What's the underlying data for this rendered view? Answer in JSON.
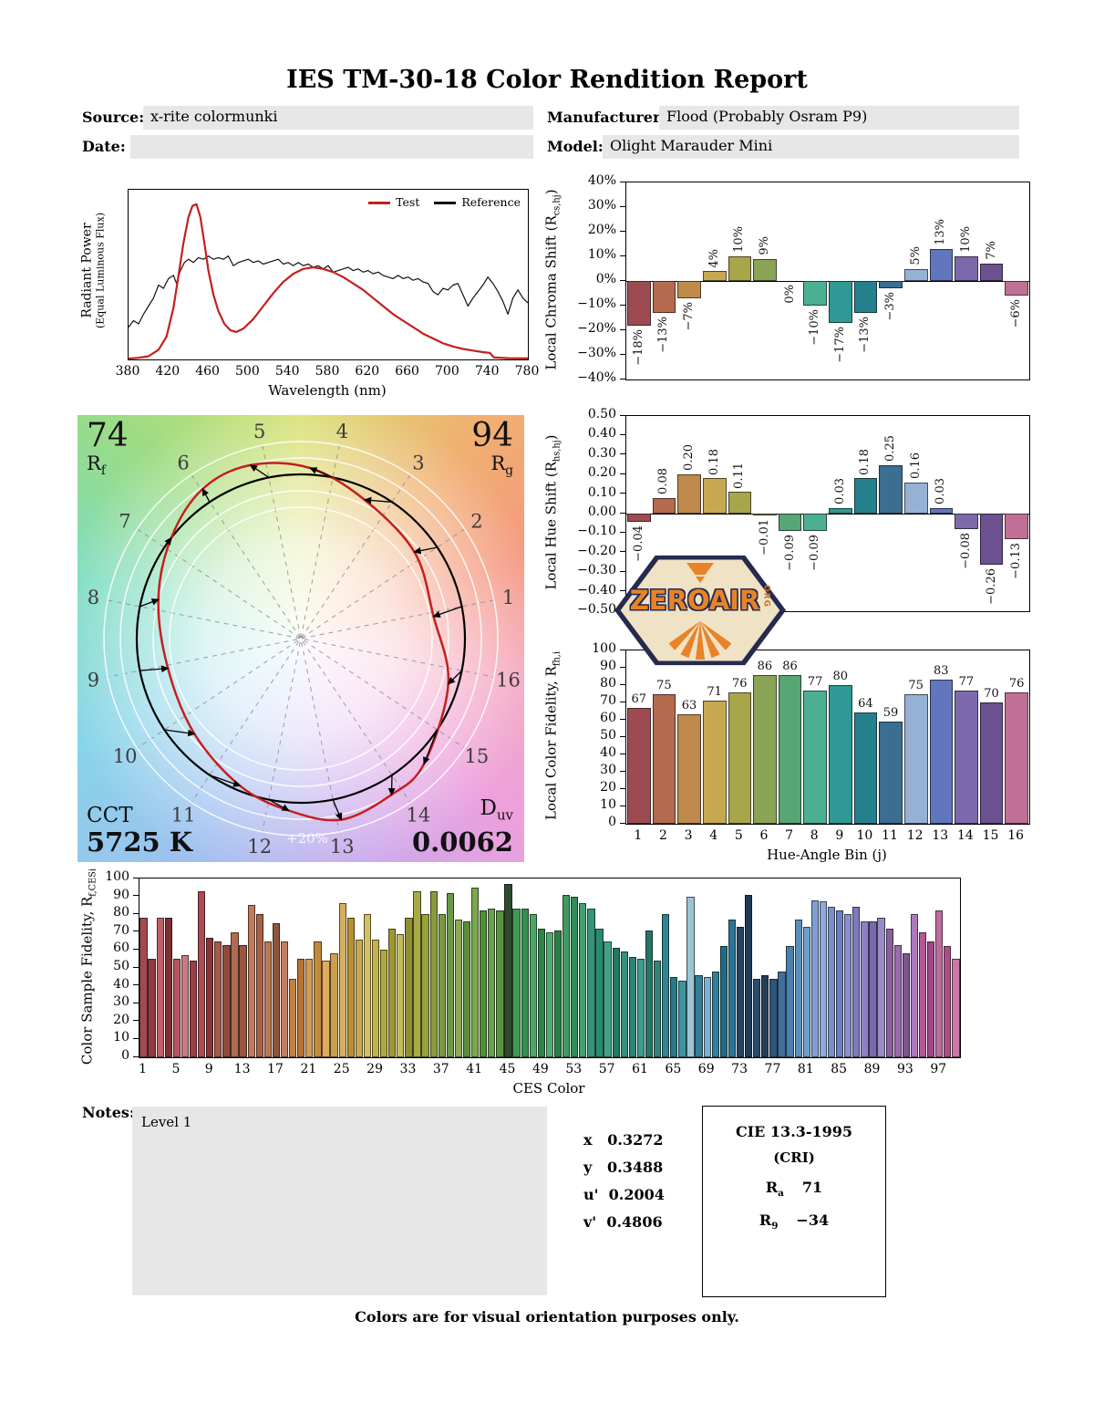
{
  "title": "IES TM-30-18 Color Rendition Report",
  "header": {
    "source_label": "Source:",
    "source_value": "x-rite colormunki",
    "manufacturer_label": "Manufacturer:",
    "manufacturer_value": "Flood (Probably Osram P9)",
    "date_label": "Date:",
    "date_value": "",
    "model_label": "Model:",
    "model_value": "Olight Marauder Mini"
  },
  "watermark": {
    "name": "ZEROAIR",
    "org": "ORG"
  },
  "notes": {
    "label": "Notes:",
    "value": "Level 1"
  },
  "chromaticity": {
    "rows": [
      {
        "label": "x",
        "value": "0.3272"
      },
      {
        "label": "y",
        "value": "0.3488"
      },
      {
        "label": "u'",
        "value": "0.2004"
      },
      {
        "label": "v'",
        "value": "0.4806"
      }
    ]
  },
  "cie_box": {
    "title": "CIE 13.3-1995",
    "subtitle": "(CRI)",
    "ra_sym": "R",
    "ra_sub": "a",
    "ra_value": "71",
    "r9_sym": "R",
    "r9_sub": "9",
    "r9_value": "−34"
  },
  "footer": "Colors are for visual orientation purposes only.",
  "cvg": {
    "rf_value": "74",
    "rf_sym": "R",
    "rf_sub": "f",
    "rg_value": "94",
    "rg_sym": "R",
    "rg_sub": "g",
    "cct_label": "CCT",
    "cct_value": "5725 K",
    "duv_sym": "D",
    "duv_sub": "uv",
    "duv_value": "0.0062",
    "ring_label": "+20%"
  },
  "bin_colors": [
    "#9d4b52",
    "#b56a4e",
    "#bf8a4b",
    "#c6a851",
    "#a8a64b",
    "#8aa455",
    "#57a572",
    "#4daf92",
    "#2e9995",
    "#25808d",
    "#3b6e90",
    "#97b1d5",
    "#6077be",
    "#7c69ac",
    "#6b5190",
    "#c06f97"
  ],
  "chart_data": [
    {
      "id": "spd",
      "type": "line",
      "ylabel": "Radiant Power",
      "ylabel_sub": "(Equal Luminous Flux)",
      "xlabel": "Wavelength (nm)",
      "xlim": [
        380,
        780
      ],
      "ymax": 1.05,
      "x_ticks": [
        380,
        420,
        460,
        500,
        540,
        580,
        620,
        660,
        700,
        740,
        780
      ],
      "series": [
        {
          "name": "Test",
          "color": "#c41f1f",
          "points": [
            [
              380,
              0.005
            ],
            [
              390,
              0.01
            ],
            [
              400,
              0.02
            ],
            [
              410,
              0.06
            ],
            [
              418,
              0.14
            ],
            [
              425,
              0.32
            ],
            [
              430,
              0.52
            ],
            [
              435,
              0.72
            ],
            [
              440,
              0.88
            ],
            [
              444,
              0.95
            ],
            [
              448,
              0.96
            ],
            [
              452,
              0.88
            ],
            [
              456,
              0.72
            ],
            [
              460,
              0.55
            ],
            [
              465,
              0.4
            ],
            [
              470,
              0.3
            ],
            [
              476,
              0.22
            ],
            [
              482,
              0.18
            ],
            [
              488,
              0.17
            ],
            [
              495,
              0.19
            ],
            [
              505,
              0.25
            ],
            [
              515,
              0.33
            ],
            [
              525,
              0.41
            ],
            [
              535,
              0.48
            ],
            [
              545,
              0.53
            ],
            [
              555,
              0.56
            ],
            [
              565,
              0.57
            ],
            [
              575,
              0.56
            ],
            [
              585,
              0.54
            ],
            [
              595,
              0.51
            ],
            [
              605,
              0.47
            ],
            [
              615,
              0.43
            ],
            [
              625,
              0.38
            ],
            [
              635,
              0.33
            ],
            [
              645,
              0.28
            ],
            [
              655,
              0.24
            ],
            [
              665,
              0.2
            ],
            [
              675,
              0.16
            ],
            [
              685,
              0.13
            ],
            [
              695,
              0.1
            ],
            [
              705,
              0.08
            ],
            [
              715,
              0.065
            ],
            [
              725,
              0.055
            ],
            [
              735,
              0.045
            ],
            [
              742,
              0.04
            ],
            [
              746,
              0.012
            ],
            [
              760,
              0.008
            ],
            [
              780,
              0.006
            ]
          ]
        },
        {
          "name": "Reference",
          "color": "#111111",
          "points": [
            [
              380,
              0.2
            ],
            [
              385,
              0.24
            ],
            [
              390,
              0.22
            ],
            [
              395,
              0.28
            ],
            [
              400,
              0.33
            ],
            [
              405,
              0.38
            ],
            [
              410,
              0.46
            ],
            [
              415,
              0.44
            ],
            [
              420,
              0.5
            ],
            [
              425,
              0.52
            ],
            [
              428,
              0.47
            ],
            [
              432,
              0.55
            ],
            [
              436,
              0.6
            ],
            [
              440,
              0.62
            ],
            [
              445,
              0.6
            ],
            [
              450,
              0.63
            ],
            [
              455,
              0.62
            ],
            [
              460,
              0.64
            ],
            [
              465,
              0.62
            ],
            [
              470,
              0.63
            ],
            [
              475,
              0.62
            ],
            [
              480,
              0.64
            ],
            [
              485,
              0.58
            ],
            [
              490,
              0.6
            ],
            [
              495,
              0.61
            ],
            [
              500,
              0.62
            ],
            [
              505,
              0.6
            ],
            [
              510,
              0.61
            ],
            [
              515,
              0.59
            ],
            [
              520,
              0.6
            ],
            [
              525,
              0.61
            ],
            [
              530,
              0.62
            ],
            [
              535,
              0.59
            ],
            [
              540,
              0.6
            ],
            [
              545,
              0.58
            ],
            [
              550,
              0.6
            ],
            [
              555,
              0.58
            ],
            [
              560,
              0.59
            ],
            [
              565,
              0.57
            ],
            [
              570,
              0.58
            ],
            [
              575,
              0.56
            ],
            [
              580,
              0.58
            ],
            [
              585,
              0.54
            ],
            [
              590,
              0.55
            ],
            [
              595,
              0.56
            ],
            [
              600,
              0.57
            ],
            [
              605,
              0.55
            ],
            [
              610,
              0.56
            ],
            [
              615,
              0.54
            ],
            [
              620,
              0.55
            ],
            [
              625,
              0.53
            ],
            [
              630,
              0.54
            ],
            [
              635,
              0.52
            ],
            [
              640,
              0.51
            ],
            [
              645,
              0.5
            ],
            [
              650,
              0.52
            ],
            [
              655,
              0.5
            ],
            [
              660,
              0.51
            ],
            [
              665,
              0.49
            ],
            [
              670,
              0.5
            ],
            [
              675,
              0.48
            ],
            [
              680,
              0.47
            ],
            [
              685,
              0.42
            ],
            [
              690,
              0.4
            ],
            [
              695,
              0.44
            ],
            [
              700,
              0.43
            ],
            [
              705,
              0.46
            ],
            [
              710,
              0.47
            ],
            [
              715,
              0.4
            ],
            [
              720,
              0.33
            ],
            [
              725,
              0.38
            ],
            [
              730,
              0.42
            ],
            [
              735,
              0.46
            ],
            [
              740,
              0.51
            ],
            [
              745,
              0.47
            ],
            [
              750,
              0.42
            ],
            [
              755,
              0.36
            ],
            [
              760,
              0.28
            ],
            [
              765,
              0.38
            ],
            [
              770,
              0.43
            ],
            [
              775,
              0.38
            ],
            [
              780,
              0.35
            ]
          ]
        }
      ]
    },
    {
      "id": "chroma_shift",
      "type": "bar",
      "ylabel_pre": "Local Chroma Shift (R",
      "ylabel_sub": "cs,hj",
      "ylabel_post": ")",
      "categories": [
        1,
        2,
        3,
        4,
        5,
        6,
        7,
        8,
        9,
        10,
        11,
        12,
        13,
        14,
        15,
        16
      ],
      "values": [
        -18,
        -13,
        -7,
        4,
        10,
        9,
        0,
        -10,
        -17,
        -13,
        -3,
        5,
        13,
        10,
        7,
        -6
      ],
      "labels": [
        "−18%",
        "−13%",
        "−7%",
        "4%",
        "10%",
        "9%",
        "0%",
        "−10%",
        "−17%",
        "−13%",
        "−3%",
        "5%",
        "13%",
        "10%",
        "7%",
        "−6%"
      ],
      "ylim": [
        -40,
        40
      ],
      "y_ticks": [
        "40%",
        "30%",
        "20%",
        "10%",
        "0%",
        "−10%",
        "−20%",
        "−30%",
        "−40%"
      ]
    },
    {
      "id": "hue_shift",
      "type": "bar",
      "ylabel_pre": "Local Hue Shift (R",
      "ylabel_sub": "hs,hj",
      "ylabel_post": ")",
      "categories": [
        1,
        2,
        3,
        4,
        5,
        6,
        7,
        8,
        9,
        10,
        11,
        12,
        13,
        14,
        15,
        16
      ],
      "values": [
        -0.04,
        0.08,
        0.2,
        0.18,
        0.11,
        -0.01,
        -0.09,
        -0.09,
        0.03,
        0.18,
        0.25,
        0.16,
        0.03,
        -0.08,
        -0.26,
        -0.13
      ],
      "labels": [
        "−0.04",
        "0.08",
        "0.20",
        "0.18",
        "0.11",
        "−0.01",
        "−0.09",
        "−0.09",
        "0.03",
        "0.18",
        "0.25",
        "0.16",
        "0.03",
        "−0.08",
        "−0.26",
        "−0.13"
      ],
      "ylim": [
        -0.5,
        0.5
      ],
      "y_ticks": [
        "0.50",
        "0.40",
        "0.30",
        "0.20",
        "0.10",
        "0.00",
        "−0.10",
        "−0.20",
        "−0.30",
        "−0.40",
        "−0.50"
      ]
    },
    {
      "id": "local_fidelity",
      "type": "bar",
      "ylabel_pre": "Local Color Fidelity, R",
      "ylabel_sub": "fh,i",
      "ylabel_post": "",
      "xlabel": "Hue-Angle Bin (j)",
      "categories": [
        1,
        2,
        3,
        4,
        5,
        6,
        7,
        8,
        9,
        10,
        11,
        12,
        13,
        14,
        15,
        16
      ],
      "values": [
        67,
        75,
        63,
        71,
        76,
        86,
        86,
        77,
        80,
        64,
        59,
        75,
        83,
        77,
        70,
        76
      ],
      "labels": [
        "67",
        "75",
        "63",
        "71",
        "76",
        "86",
        "86",
        "77",
        "80",
        "64",
        "59",
        "75",
        "83",
        "77",
        "70",
        "76"
      ],
      "ylim": [
        0,
        100
      ],
      "y_ticks": [
        "100",
        "90",
        "80",
        "70",
        "60",
        "50",
        "40",
        "30",
        "20",
        "10",
        "0"
      ]
    },
    {
      "id": "ces_fidelity",
      "type": "bar",
      "ylabel_pre": "Color Sample Fidelity, R",
      "ylabel_sub": "f,CESi",
      "ylabel_post": "",
      "xlabel": "CES Color",
      "ylim": [
        0,
        100
      ],
      "y_ticks": [
        "100",
        "90",
        "80",
        "70",
        "60",
        "50",
        "40",
        "30",
        "20",
        "10",
        "0"
      ],
      "x_ticks": [
        1,
        5,
        9,
        13,
        17,
        21,
        25,
        29,
        33,
        37,
        41,
        45,
        49,
        53,
        57,
        61,
        65,
        69,
        73,
        77,
        81,
        85,
        89,
        93,
        97
      ],
      "values": [
        78,
        55,
        78,
        78,
        55,
        57,
        54,
        93,
        67,
        65,
        63,
        70,
        63,
        85,
        80,
        65,
        75,
        65,
        44,
        55,
        55,
        65,
        54,
        58,
        86,
        78,
        66,
        80,
        66,
        60,
        72,
        69,
        78,
        93,
        80,
        93,
        80,
        92,
        77,
        76,
        95,
        82,
        83,
        82,
        97,
        83,
        83,
        80,
        72,
        70,
        71,
        91,
        90,
        86,
        83,
        72,
        65,
        61,
        59,
        56,
        55,
        71,
        54,
        80,
        45,
        43,
        90,
        46,
        45,
        48,
        62,
        77,
        73,
        91,
        44,
        46,
        44,
        48,
        62,
        77,
        73,
        88,
        87,
        84,
        82,
        80,
        84,
        76,
        76,
        78,
        72,
        63,
        58,
        80,
        70,
        65,
        82,
        62,
        55
      ],
      "colors": [
        "#a04a50",
        "#8f3a40",
        "#c2606a",
        "#7d2f34",
        "#b5555f",
        "#c87a80",
        "#993f46",
        "#b04a55",
        "#8a3338",
        "#a55a4a",
        "#8f4a3a",
        "#b06a50",
        "#9a5540",
        "#c27a5a",
        "#aa6044",
        "#b87a55",
        "#8f553a",
        "#c08060",
        "#c28040",
        "#b5742f",
        "#d49a55",
        "#c08a3a",
        "#e0aa60",
        "#caa04a",
        "#d4b060",
        "#b89030",
        "#c9a84f",
        "#d4c060",
        "#c2b44a",
        "#b0a83a",
        "#a0982f",
        "#c4bc5a",
        "#8f8f30",
        "#a8aa45",
        "#9aa03a",
        "#8a9a3a",
        "#7a9a40",
        "#6a9a45",
        "#8aaa55",
        "#5a8f3a",
        "#7aa84f",
        "#4f8f35",
        "#6aa050",
        "#55963f",
        "#2f4a2f",
        "#3f9a55",
        "#359050",
        "#4aa868",
        "#2f8548",
        "#55aa72",
        "#2a7f45",
        "#3f9a62",
        "#2f8f58",
        "#44a070",
        "#35957a",
        "#2a8a70",
        "#45a088",
        "#1f7a60",
        "#359080",
        "#2a8575",
        "#3f9a90",
        "#257568",
        "#308578",
        "#2f8590",
        "#257a88",
        "#3a95a0",
        "#9cc4d4",
        "#2f7f95",
        "#7fb0cc",
        "#30809a",
        "#1f6a85",
        "#2a7595",
        "#24455f",
        "#1f3a55",
        "#2a4a6f",
        "#233f58",
        "#2f557a",
        "#40709a",
        "#4a7fae",
        "#5a8fbd",
        "#6f9fc9",
        "#7f9fd4",
        "#8faad9",
        "#7a8fc9",
        "#6a7fbf",
        "#8a8fd0",
        "#7a7abf",
        "#8f7fc5",
        "#7a6aaa",
        "#9a8aca",
        "#8a5f9e",
        "#9a6aae",
        "#7d5590",
        "#aa7abd",
        "#b5559a",
        "#a04585",
        "#c06a9e",
        "#aa4f85",
        "#c97aa5"
      ]
    }
  ]
}
